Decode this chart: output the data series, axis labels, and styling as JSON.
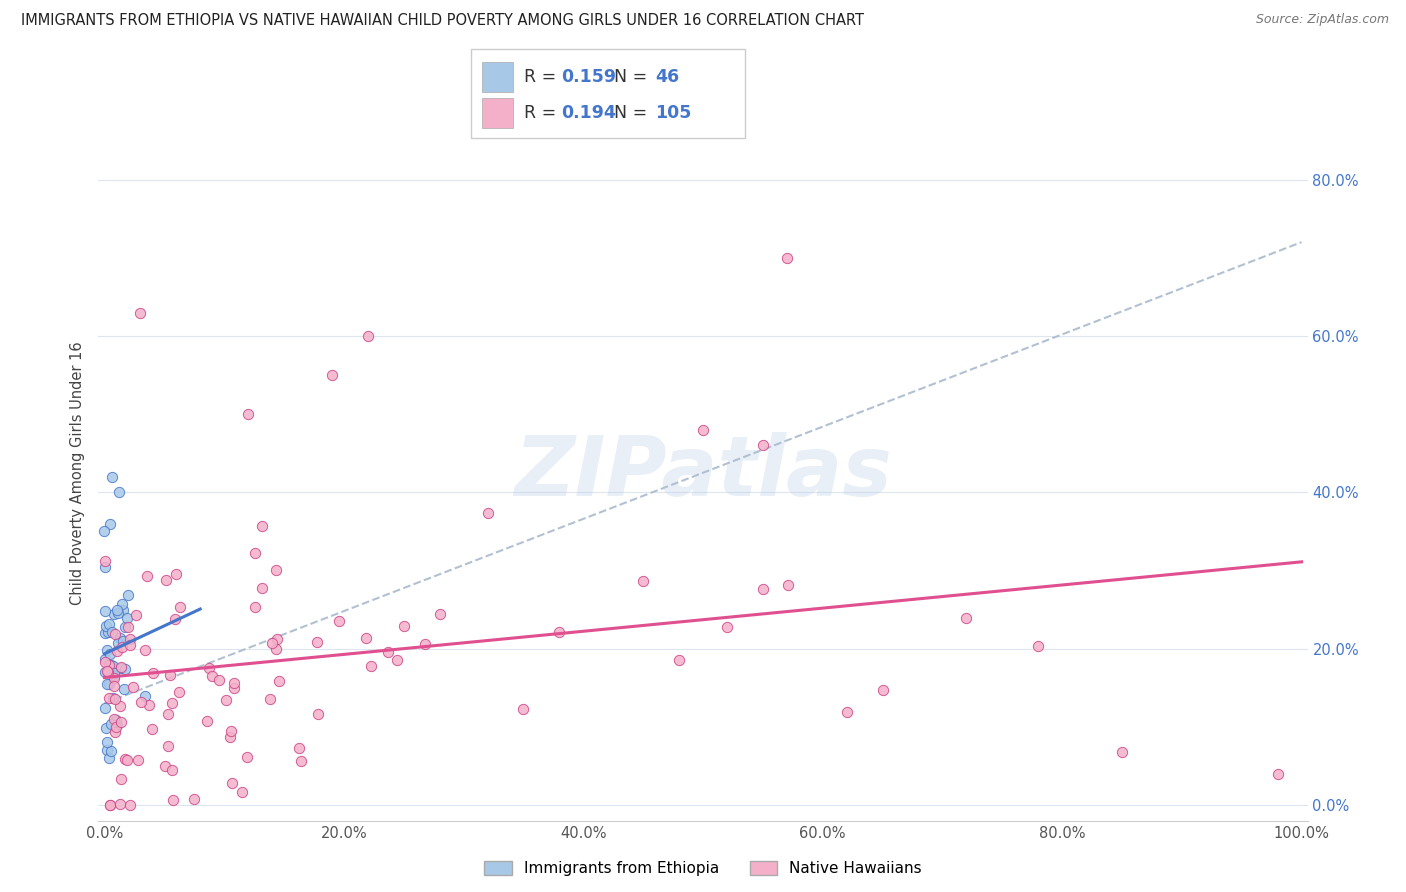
{
  "title": "IMMIGRANTS FROM ETHIOPIA VS NATIVE HAWAIIAN CHILD POVERTY AMONG GIRLS UNDER 16 CORRELATION CHART",
  "source": "Source: ZipAtlas.com",
  "ylabel": "Child Poverty Among Girls Under 16",
  "R_ethiopia": 0.159,
  "N_ethiopia": 46,
  "R_hawaiian": 0.194,
  "N_hawaiian": 105,
  "color_ethiopia": "#a8c8e8",
  "color_hawaiian": "#f4b0c8",
  "trendline_ethiopia": "#4477cc",
  "trendline_hawaiian": "#e05090",
  "trendline_dashed": "#aabbcc",
  "background_color": "#ffffff",
  "grid_color": "#dde5f0",
  "watermark": "ZIPatlas",
  "xlim": [
    0.0,
    1.0
  ],
  "ylim": [
    0.0,
    0.85
  ],
  "x_ticks": [
    0.0,
    0.2,
    0.4,
    0.6,
    0.8,
    1.0
  ],
  "y_ticks": [
    0.0,
    0.2,
    0.4,
    0.6,
    0.8
  ],
  "legend_labels": [
    "Immigrants from Ethiopia",
    "Native Hawaiians"
  ]
}
